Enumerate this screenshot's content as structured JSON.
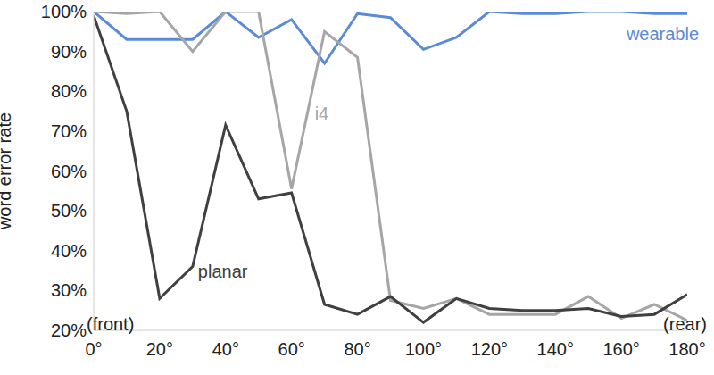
{
  "chart_data": {
    "type": "line",
    "y_label": "word error rate",
    "annotations": [
      "(front)",
      "(rear)"
    ],
    "x": [
      0,
      10,
      20,
      30,
      40,
      50,
      60,
      70,
      80,
      90,
      100,
      110,
      120,
      130,
      140,
      150,
      160,
      170,
      180
    ],
    "series": [
      {
        "name": "wearable",
        "color": "#5b8ad6",
        "values": [
          100,
          93,
          93,
          93,
          100,
          93.5,
          98,
          87,
          99.5,
          98.5,
          90.5,
          93.5,
          100,
          99.5,
          99.5,
          100,
          100,
          99.5,
          99.5
        ]
      },
      {
        "name": "i4",
        "color": "#a6a6a6",
        "values": [
          100,
          99.5,
          100,
          90,
          100,
          100,
          55.5,
          95,
          88.5,
          27.5,
          25.5,
          28,
          24,
          24,
          24,
          28.5,
          23,
          26.5,
          22.5
        ]
      },
      {
        "name": "planar",
        "color": "#404040",
        "values": [
          99,
          75,
          28,
          36,
          71.5,
          53,
          54.5,
          26.5,
          24,
          28.5,
          22,
          28,
          25.5,
          25,
          25,
          25.5,
          23.5,
          24,
          29
        ]
      }
    ],
    "xlim": [
      0,
      180
    ],
    "xticks": [
      {
        "value": 0,
        "label": "0°"
      },
      {
        "value": 20,
        "label": "20°"
      },
      {
        "value": 40,
        "label": "40°"
      },
      {
        "value": 60,
        "label": "60°"
      },
      {
        "value": 80,
        "label": "80°"
      },
      {
        "value": 100,
        "label": "100°"
      },
      {
        "value": 120,
        "label": "120°"
      },
      {
        "value": 140,
        "label": "140°"
      },
      {
        "value": 160,
        "label": "160°"
      },
      {
        "value": 180,
        "label": "180°"
      }
    ],
    "ylim": [
      20,
      100
    ],
    "yticks": [
      {
        "value": 20,
        "label": "20%"
      },
      {
        "value": 30,
        "label": "30%"
      },
      {
        "value": 40,
        "label": "40%"
      },
      {
        "value": 50,
        "label": "50%"
      },
      {
        "value": 60,
        "label": "60%"
      },
      {
        "value": 70,
        "label": "70%"
      },
      {
        "value": 80,
        "label": "80%"
      },
      {
        "value": 90,
        "label": "90%"
      },
      {
        "value": 100,
        "label": "100%"
      }
    ],
    "grid": false
  }
}
